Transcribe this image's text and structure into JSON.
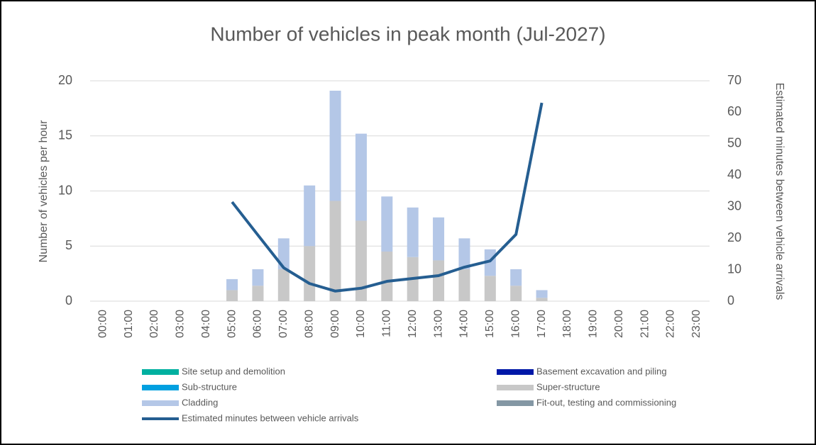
{
  "chart_data": {
    "type": "bar",
    "stacked": true,
    "title": "Number of vehicles in peak month (Jul-2027)",
    "y_label": "Number of vehicles per hour",
    "y2_label": "Estimated minutes between vehicle arrivals",
    "categories": [
      "00:00",
      "01:00",
      "02:00",
      "03:00",
      "04:00",
      "05:00",
      "06:00",
      "07:00",
      "08:00",
      "09:00",
      "10:00",
      "11:00",
      "12:00",
      "13:00",
      "14:00",
      "15:00",
      "16:00",
      "17:00",
      "18:00",
      "19:00",
      "20:00",
      "21:00",
      "22:00",
      "23:00"
    ],
    "series": [
      {
        "name": "Site setup and demolition",
        "color": "#00b0a0",
        "values": [
          0,
          0,
          0,
          0,
          0,
          0,
          0,
          0,
          0,
          0,
          0,
          0,
          0,
          0,
          0,
          0,
          0,
          0,
          0,
          0,
          0,
          0,
          0,
          0
        ]
      },
      {
        "name": "Basement excavation and piling",
        "color": "#0018a8",
        "values": [
          0,
          0,
          0,
          0,
          0,
          0,
          0,
          0,
          0,
          0,
          0,
          0,
          0,
          0,
          0,
          0,
          0,
          0,
          0,
          0,
          0,
          0,
          0,
          0
        ]
      },
      {
        "name": "Sub-structure",
        "color": "#00a0e0",
        "values": [
          0,
          0,
          0,
          0,
          0,
          0,
          0,
          0,
          0,
          0,
          0,
          0,
          0,
          0,
          0,
          0,
          0,
          0,
          0,
          0,
          0,
          0,
          0,
          0
        ]
      },
      {
        "name": "Super-structure",
        "color": "#c8c8c8",
        "values": [
          0,
          0,
          0,
          0,
          0,
          1,
          1.4,
          2.9,
          5,
          9.1,
          7.3,
          4.5,
          4,
          3.7,
          2.9,
          2.3,
          1.4,
          0.3,
          0,
          0,
          0,
          0,
          0,
          0
        ]
      },
      {
        "name": "Cladding",
        "color": "#b4c7e7",
        "values": [
          0,
          0,
          0,
          0,
          0,
          1,
          1.5,
          2.8,
          5.5,
          10,
          7.9,
          5,
          4.5,
          3.9,
          2.8,
          2.4,
          1.5,
          0.7,
          0,
          0,
          0,
          0,
          0,
          0
        ]
      },
      {
        "name": "Fit-out, testing and commissioning",
        "color": "#8497a4",
        "values": [
          0,
          0,
          0,
          0,
          0,
          0,
          0,
          0,
          0,
          0,
          0,
          0,
          0,
          0,
          0,
          0,
          0,
          0,
          0,
          0,
          0,
          0,
          0,
          0
        ]
      },
      {
        "name": "Estimated minutes between vehicle arrivals",
        "color": "#255e91",
        "type": "line",
        "axis": "y2",
        "values": [
          null,
          null,
          null,
          null,
          null,
          31.5,
          21,
          10.6,
          5.6,
          3.2,
          4.1,
          6.3,
          7.2,
          8.1,
          10.8,
          12.8,
          21.2,
          63,
          null,
          null,
          null,
          null,
          null,
          null
        ]
      }
    ],
    "ylim": [
      0,
      20
    ],
    "yticks": [
      0,
      5,
      10,
      15,
      20
    ],
    "y2lim": [
      0,
      70
    ],
    "y2ticks": [
      0,
      10,
      20,
      30,
      40,
      50,
      60,
      70
    ],
    "grid": true,
    "legend": "bottom"
  }
}
